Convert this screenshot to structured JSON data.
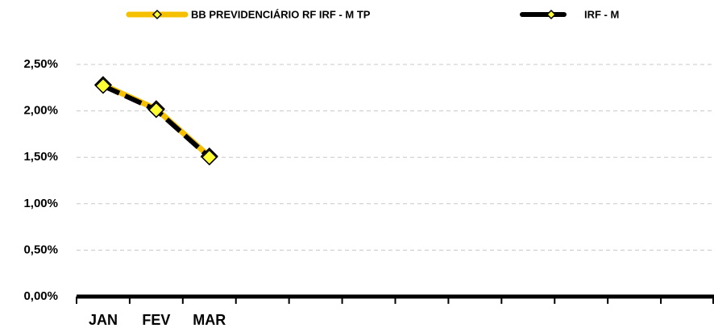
{
  "chart_data": {
    "type": "line",
    "categories": [
      "JAN",
      "FEV",
      "MAR",
      null,
      null,
      null,
      null,
      null,
      null,
      null,
      null,
      null
    ],
    "series": [
      {
        "name": "BB PREVIDENCIÁRIO RF IRF - M TP",
        "color": "#f5c000",
        "values": [
          2.28,
          2.02,
          1.51,
          null,
          null,
          null,
          null,
          null,
          null,
          null,
          null,
          null
        ]
      },
      {
        "name": "IRF - M",
        "color": "#000000",
        "values": [
          2.27,
          2.01,
          1.5,
          null,
          null,
          null,
          null,
          null,
          null,
          null,
          null,
          null
        ]
      }
    ],
    "marker_color": "#ffff33",
    "ylim": [
      0,
      2.5
    ],
    "yticks": [
      {
        "value": 0,
        "label": "0,00%"
      },
      {
        "value": 0.5,
        "label": "0,50%"
      },
      {
        "value": 1,
        "label": "1,00%"
      },
      {
        "value": 1.5,
        "label": "1,50%"
      },
      {
        "value": 2,
        "label": "2,00%"
      },
      {
        "value": 2.5,
        "label": "2,50%"
      }
    ],
    "grid": true,
    "legend": "top"
  }
}
